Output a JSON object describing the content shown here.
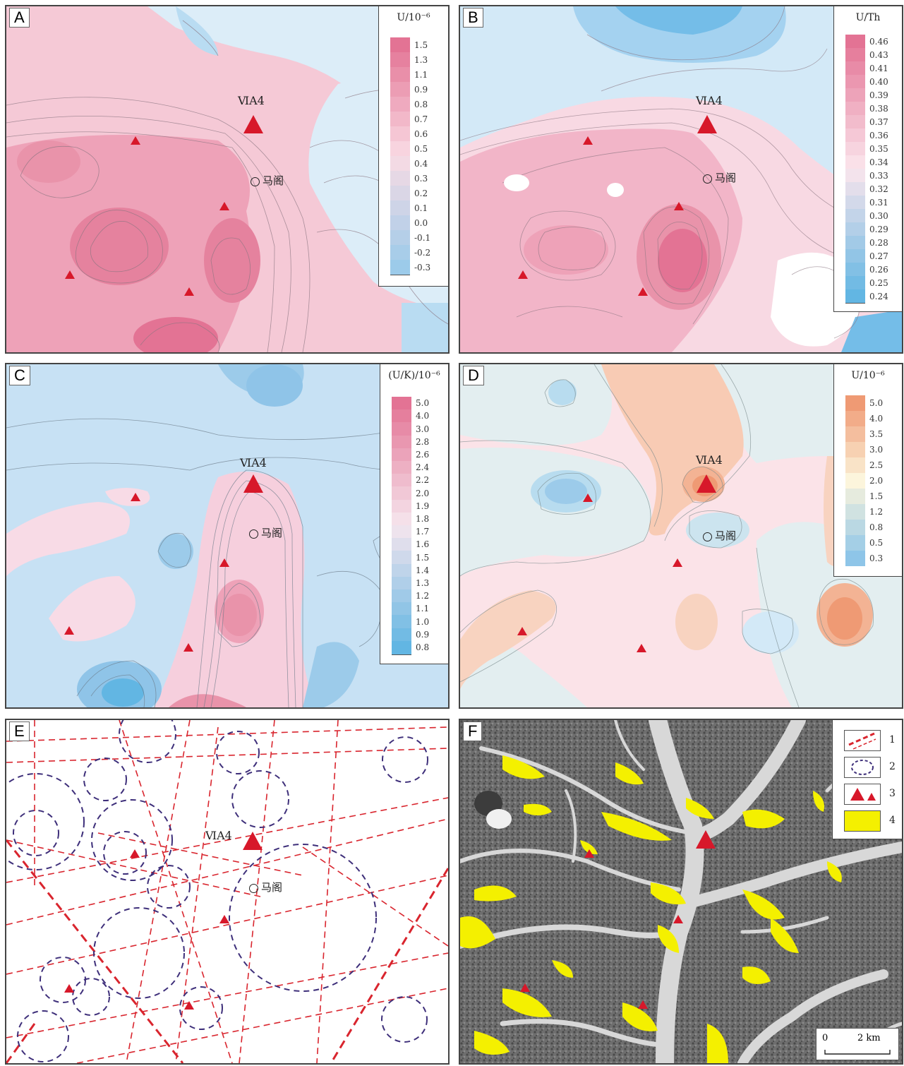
{
  "panels": {
    "A": {
      "label": "A",
      "legend_title": "U/10⁻⁶",
      "ticks": [
        "1.5",
        "1.3",
        "1.1",
        "0.9",
        "0.8",
        "0.7",
        "0.6",
        "0.5",
        "0.4",
        "0.3",
        "0.2",
        "0.1",
        "0.0",
        "-0.1",
        "-0.2",
        "-0.3"
      ],
      "bar_top": "#e37394",
      "bar_mid": "#f9dbe4",
      "bar_bottom": "#9ccbea"
    },
    "B": {
      "label": "B",
      "legend_title": "U/Th",
      "ticks": [
        "0.46",
        "0.43",
        "0.41",
        "0.40",
        "0.39",
        "0.38",
        "0.37",
        "0.36",
        "0.35",
        "0.34",
        "0.33",
        "0.32",
        "0.31",
        "0.30",
        "0.29",
        "0.28",
        "0.27",
        "0.26",
        "0.25",
        "0.24"
      ],
      "bar_top": "#e37394",
      "bar_mid": "#fbe6ed",
      "bar_bottom": "#62b6e3"
    },
    "C": {
      "label": "C",
      "legend_title": "(U/K)/10⁻⁶",
      "ticks": [
        "5.0",
        "4.0",
        "3.0",
        "2.8",
        "2.6",
        "2.4",
        "2.2",
        "2.0",
        "1.9",
        "1.8",
        "1.7",
        "1.6",
        "1.5",
        "1.4",
        "1.3",
        "1.2",
        "1.1",
        "1.0",
        "0.9",
        "0.8"
      ],
      "bar_top": "#e37394",
      "bar_mid": "#f6e6ee",
      "bar_bottom": "#62b6e3"
    },
    "D": {
      "label": "D",
      "legend_title": "U/10⁻⁶",
      "ticks": [
        "5.0",
        "4.0",
        "3.5",
        "3.0",
        "2.5",
        "2.0",
        "1.5",
        "1.2",
        "0.8",
        "0.5",
        "0.3"
      ],
      "bar_top": "#ef9a74",
      "bar_mid": "#fcf5dc",
      "bar_bottom": "#8ec5e8"
    },
    "E": {
      "label": "E"
    },
    "F": {
      "label": "F",
      "key_numbers": [
        "1",
        "2",
        "3",
        "4"
      ],
      "scale_zero": "0",
      "scale_label": "2 km"
    }
  },
  "deposit_label": "ⅥA4",
  "town_label": "马阁",
  "colors": {
    "triangle": "#d7182a",
    "fault": "#d9252e",
    "anomaly_ring": "#3e2f7a",
    "alteration": "#f4f000",
    "pink_high": "#e37394",
    "blue_low": "#9ccbea",
    "orange_high": "#ef9a74"
  }
}
